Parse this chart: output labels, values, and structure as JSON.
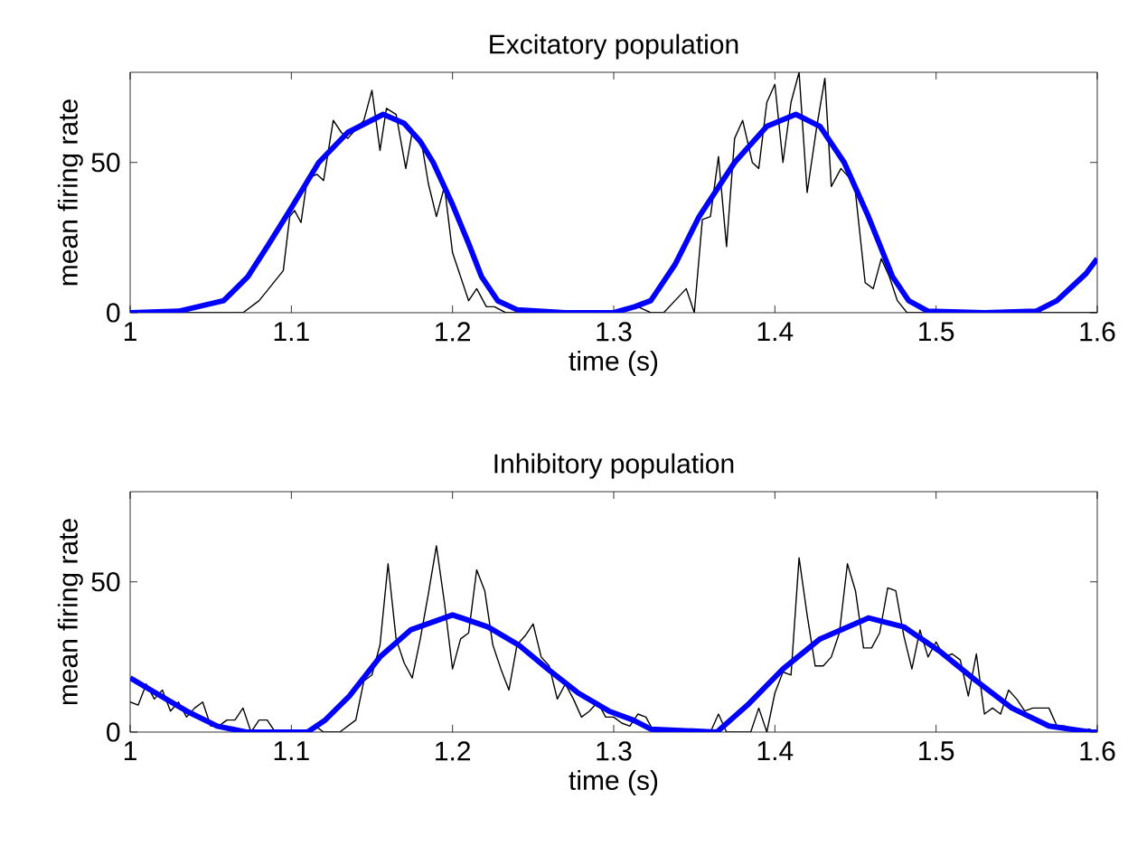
{
  "chart_data": [
    {
      "type": "line",
      "title": "Excitatory population",
      "xlabel": "time (s)",
      "ylabel": "mean firing rate",
      "xlim": [
        1,
        1.6
      ],
      "ylim": [
        0,
        80
      ],
      "xticks": [
        1,
        1.1,
        1.2,
        1.3,
        1.4,
        1.5,
        1.6
      ],
      "yticks": [
        0,
        50
      ],
      "grid": false,
      "marker": "none",
      "line_style": "solid",
      "series": [
        {
          "color": "#000000",
          "x": [
            1.0,
            1.07,
            1.075,
            1.08,
            1.086,
            1.095,
            1.099,
            1.102,
            1.106,
            1.11,
            1.116,
            1.12,
            1.126,
            1.131,
            1.135,
            1.14,
            1.145,
            1.15,
            1.155,
            1.159,
            1.165,
            1.171,
            1.175,
            1.181,
            1.185,
            1.19,
            1.195,
            1.2,
            1.205,
            1.21,
            1.215,
            1.221,
            1.226,
            1.233,
            1.3,
            1.315,
            1.323,
            1.331,
            1.345,
            1.35,
            1.355,
            1.36,
            1.365,
            1.37,
            1.375,
            1.38,
            1.386,
            1.39,
            1.395,
            1.4,
            1.405,
            1.41,
            1.415,
            1.42,
            1.426,
            1.431,
            1.435,
            1.441,
            1.446,
            1.45,
            1.456,
            1.461,
            1.466,
            1.471,
            1.476,
            1.482,
            1.6
          ],
          "values": [
            0,
            0,
            2,
            4,
            8,
            14,
            32,
            34,
            30,
            45,
            46,
            44,
            64,
            60,
            58,
            61,
            64,
            74,
            54,
            68,
            66,
            48,
            60,
            56,
            43,
            32,
            42,
            20,
            12,
            4,
            8,
            2,
            2,
            0,
            0,
            2,
            0,
            0,
            8,
            0,
            31,
            32,
            52,
            22,
            58,
            64,
            50,
            48,
            70,
            76,
            50,
            70,
            80,
            40,
            62,
            78,
            42,
            48,
            45,
            40,
            10,
            8,
            18,
            12,
            4,
            0,
            0
          ]
        },
        {
          "color": "#0000ff",
          "x": [
            1.0,
            1.03,
            1.058,
            1.073,
            1.085,
            1.099,
            1.117,
            1.135,
            1.157,
            1.17,
            1.18,
            1.188,
            1.2,
            1.21,
            1.218,
            1.228,
            1.24,
            1.27,
            1.3,
            1.313,
            1.323,
            1.338,
            1.353,
            1.375,
            1.395,
            1.413,
            1.428,
            1.443,
            1.458,
            1.473,
            1.483,
            1.495,
            1.53,
            1.562,
            1.575,
            1.585,
            1.593,
            1.6
          ],
          "values": [
            0,
            0.5,
            4,
            12,
            22,
            34,
            50,
            60,
            66,
            63,
            57,
            50,
            36,
            23,
            12,
            4,
            1,
            0,
            0,
            2,
            4,
            16,
            32,
            50,
            62,
            66,
            62,
            50,
            32,
            12,
            4,
            0.5,
            0,
            0.5,
            4,
            9,
            13,
            18
          ]
        }
      ]
    },
    {
      "type": "line",
      "title": "Inhibitory population",
      "xlabel": "time (s)",
      "ylabel": "mean firing rate",
      "xlim": [
        1,
        1.6
      ],
      "ylim": [
        0,
        80
      ],
      "xticks": [
        1,
        1.1,
        1.2,
        1.3,
        1.4,
        1.5,
        1.6
      ],
      "yticks": [
        0,
        50
      ],
      "grid": false,
      "marker": "none",
      "line_style": "solid",
      "series": [
        {
          "color": "#000000",
          "x": [
            1.0,
            1.005,
            1.01,
            1.015,
            1.02,
            1.025,
            1.03,
            1.035,
            1.04,
            1.045,
            1.05,
            1.055,
            1.06,
            1.065,
            1.07,
            1.075,
            1.08,
            1.085,
            1.09,
            1.095,
            1.1,
            1.105,
            1.11,
            1.115,
            1.12,
            1.125,
            1.13,
            1.135,
            1.14,
            1.145,
            1.15,
            1.155,
            1.16,
            1.165,
            1.17,
            1.175,
            1.18,
            1.185,
            1.19,
            1.195,
            1.2,
            1.205,
            1.21,
            1.215,
            1.22,
            1.225,
            1.23,
            1.235,
            1.24,
            1.245,
            1.25,
            1.255,
            1.26,
            1.265,
            1.27,
            1.275,
            1.28,
            1.285,
            1.29,
            1.295,
            1.3,
            1.305,
            1.31,
            1.315,
            1.32,
            1.325,
            1.33,
            1.335,
            1.34,
            1.345,
            1.35,
            1.355,
            1.36,
            1.365,
            1.37,
            1.375,
            1.38,
            1.385,
            1.39,
            1.395,
            1.4,
            1.405,
            1.41,
            1.415,
            1.42,
            1.425,
            1.43,
            1.435,
            1.44,
            1.445,
            1.45,
            1.455,
            1.46,
            1.465,
            1.47,
            1.475,
            1.48,
            1.485,
            1.49,
            1.495,
            1.5,
            1.505,
            1.51,
            1.515,
            1.52,
            1.525,
            1.53,
            1.535,
            1.54,
            1.545,
            1.55,
            1.555,
            1.56,
            1.565,
            1.57,
            1.575,
            1.58,
            1.585,
            1.59,
            1.595,
            1.6
          ],
          "values": [
            10,
            9,
            16,
            11,
            14,
            7,
            10,
            5,
            8,
            10,
            2,
            2,
            4,
            4,
            8,
            0,
            4,
            4,
            0,
            0,
            0,
            0,
            0,
            2,
            0,
            0,
            0,
            2,
            4,
            17,
            19,
            29,
            56,
            31,
            23,
            18,
            31,
            46,
            62,
            43,
            21,
            31,
            33,
            54,
            47,
            29,
            21,
            14,
            29,
            32,
            36,
            25,
            22,
            11,
            16,
            11,
            5,
            7,
            10,
            5,
            5,
            3,
            2,
            6,
            5,
            0,
            0,
            0,
            0,
            0,
            0,
            0,
            0,
            6,
            0,
            0,
            0,
            0,
            8,
            0,
            13,
            20,
            19,
            58,
            39,
            22,
            22,
            25,
            33,
            56,
            47,
            28,
            28,
            33,
            48,
            47,
            32,
            21,
            34,
            25,
            30,
            25,
            26,
            24,
            12,
            26,
            6,
            8,
            6,
            14,
            11,
            7,
            8,
            8,
            8,
            2,
            2,
            1,
            0,
            1,
            0
          ]
        },
        {
          "color": "#0000ff",
          "x": [
            1.0,
            1.035,
            1.054,
            1.072,
            1.11,
            1.121,
            1.136,
            1.155,
            1.174,
            1.2,
            1.222,
            1.241,
            1.259,
            1.278,
            1.297,
            1.312,
            1.323,
            1.364,
            1.383,
            1.405,
            1.428,
            1.458,
            1.48,
            1.502,
            1.525,
            1.547,
            1.57,
            1.596,
            1.6
          ],
          "values": [
            18,
            7,
            2,
            0,
            0,
            4,
            12,
            25,
            34,
            39,
            35,
            29,
            21,
            13,
            7,
            4,
            1,
            0,
            9,
            21,
            31,
            38,
            35,
            27,
            17,
            8,
            2,
            0,
            0
          ]
        }
      ]
    }
  ]
}
